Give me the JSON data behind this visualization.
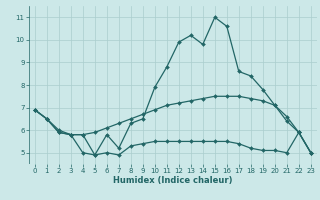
{
  "title": "",
  "xlabel": "Humidex (Indice chaleur)",
  "bg_color": "#cce8e8",
  "grid_color": "#aacece",
  "line_color": "#226666",
  "xlim": [
    -0.5,
    23.5
  ],
  "ylim": [
    4.5,
    11.5
  ],
  "xticks": [
    0,
    1,
    2,
    3,
    4,
    5,
    6,
    7,
    8,
    9,
    10,
    11,
    12,
    13,
    14,
    15,
    16,
    17,
    18,
    19,
    20,
    21,
    22,
    23
  ],
  "yticks": [
    5,
    6,
    7,
    8,
    9,
    10,
    11
  ],
  "line1_x": [
    0,
    1,
    2,
    3,
    4,
    5,
    6,
    7,
    8,
    9,
    10,
    11,
    12,
    13,
    14,
    15,
    16,
    17,
    18,
    19,
    20,
    21,
    22,
    23
  ],
  "line1_y": [
    6.9,
    6.5,
    5.9,
    5.8,
    5.8,
    4.9,
    5.8,
    5.2,
    6.3,
    6.5,
    7.9,
    8.8,
    9.9,
    10.2,
    9.8,
    11.0,
    10.6,
    8.6,
    8.4,
    7.8,
    7.1,
    6.4,
    5.9,
    5.0
  ],
  "line2_x": [
    0,
    1,
    2,
    3,
    4,
    5,
    6,
    7,
    8,
    9,
    10,
    11,
    12,
    13,
    14,
    15,
    16,
    17,
    18,
    19,
    20,
    21,
    22,
    23
  ],
  "line2_y": [
    6.9,
    6.5,
    5.9,
    5.8,
    5.0,
    4.9,
    5.0,
    4.9,
    5.3,
    5.4,
    5.5,
    5.5,
    5.5,
    5.5,
    5.5,
    5.5,
    5.5,
    5.4,
    5.2,
    5.1,
    5.1,
    5.0,
    5.9,
    5.0
  ],
  "line3_x": [
    0,
    1,
    2,
    3,
    4,
    5,
    6,
    7,
    8,
    9,
    10,
    11,
    12,
    13,
    14,
    15,
    16,
    17,
    18,
    19,
    20,
    21,
    22,
    23
  ],
  "line3_y": [
    6.9,
    6.5,
    6.0,
    5.8,
    5.8,
    5.9,
    6.1,
    6.3,
    6.5,
    6.7,
    6.9,
    7.1,
    7.2,
    7.3,
    7.4,
    7.5,
    7.5,
    7.5,
    7.4,
    7.3,
    7.1,
    6.6,
    5.9,
    5.0
  ]
}
